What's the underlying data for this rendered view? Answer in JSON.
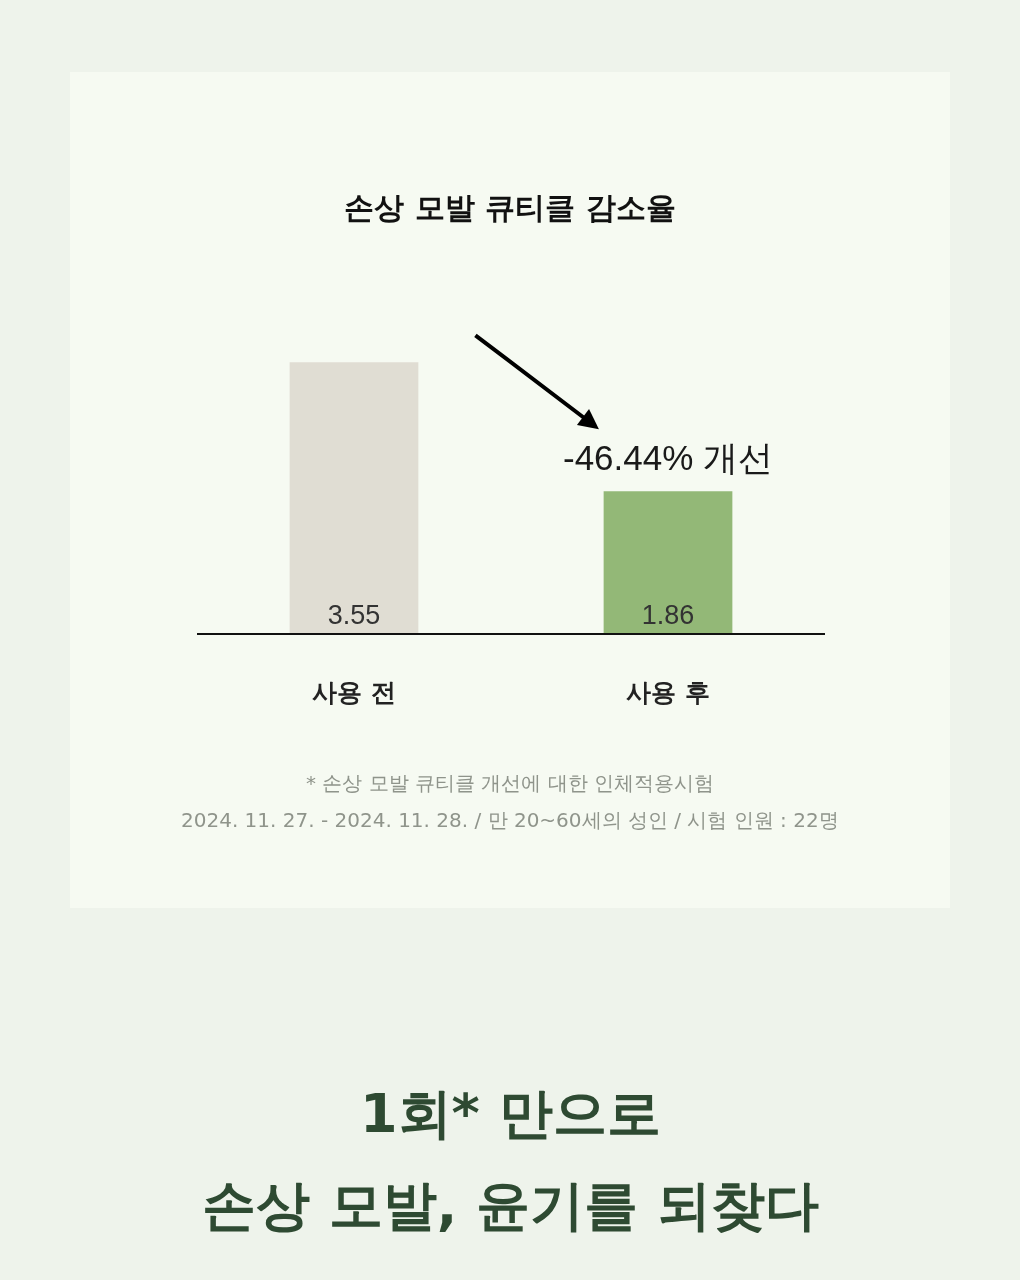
{
  "chart_data": {
    "type": "bar",
    "title": "손상 모발 큐티클 감소율",
    "categories": [
      "사용 전",
      "사용 후"
    ],
    "values": [
      3.55,
      1.86
    ],
    "colors": [
      "#e0ddd3",
      "#93b877"
    ],
    "data_labels": true,
    "annotations": [
      {
        "text": "-46.44% 개선",
        "x": "사용 후",
        "y": 1.86
      },
      "* 손상 모발 큐티클 개선에 대한 인체적용시험\n2024. 11. 27. - 2024. 11. 28. / 만 20~60세의 성인 / 시험 인원 : 22명",
      "1회* 만으로\n손상 모발, 윤기를 되찾다"
    ]
  }
}
